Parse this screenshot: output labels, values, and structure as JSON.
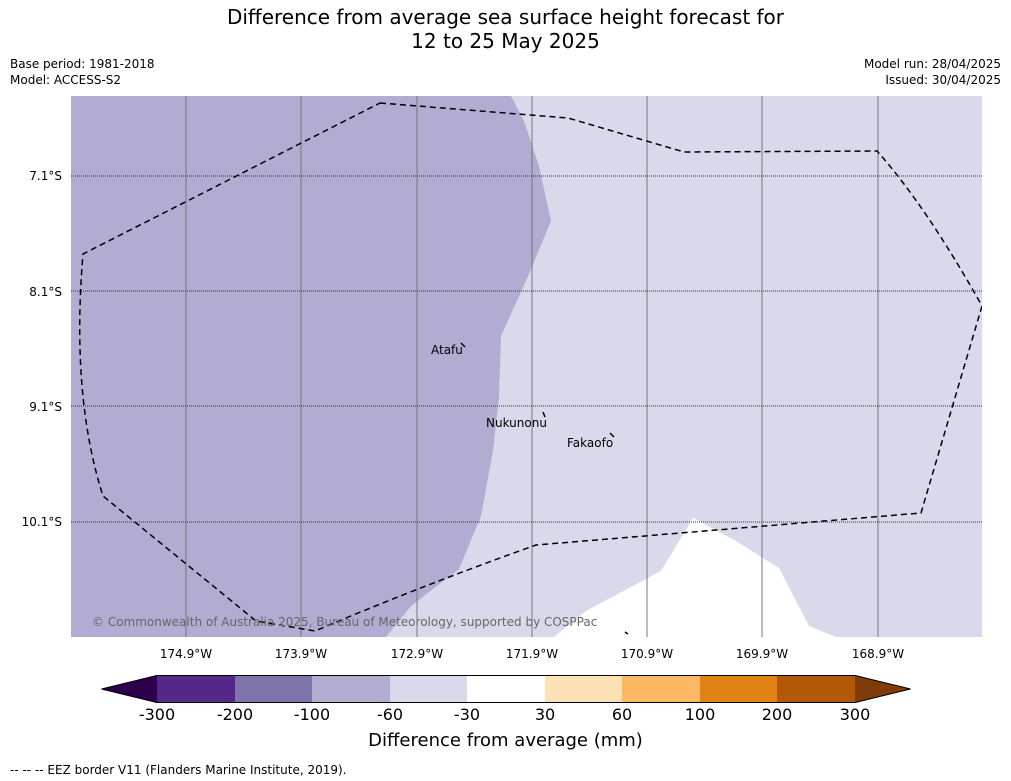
{
  "title_line1": "Difference from average sea surface height forecast for",
  "title_line2": "12 to 25 May 2025",
  "base_period": "Base period: 1981-2018",
  "model": "Model: ACCESS-S2",
  "model_run": "Model run: 28/04/2025",
  "issued": "Issued: 30/04/2025",
  "lat_labels": [
    "7.1°S",
    "8.1°S",
    "9.1°S",
    "10.1°S"
  ],
  "lon_labels": [
    "174.9°W",
    "173.9°W",
    "172.9°W",
    "171.9°W",
    "170.9°W",
    "169.9°W",
    "168.9°W"
  ],
  "places": {
    "atafu": "Atafu",
    "nukunonu": "Nukunonu",
    "fakaofo": "Fakaofo"
  },
  "copyright": "© Commonwealth of Australia 2025, Bureau of Meteorology, supported by COSPPac",
  "colorbar": {
    "label": "Difference from average (mm)",
    "ticks": [
      "-300",
      "-200",
      "-100",
      "-60",
      "-30",
      "30",
      "60",
      "100",
      "200",
      "300"
    ],
    "colors": [
      "#2d004b",
      "#542788",
      "#8073ac",
      "#b2abd2",
      "#d8daeb",
      "#ffffff",
      "#fee0b6",
      "#fdb863",
      "#e08214",
      "#b35806",
      "#7f3b08"
    ]
  },
  "footer": "-- -- -- EEZ border V11 (Flanders Marine Institute, 2019)."
}
